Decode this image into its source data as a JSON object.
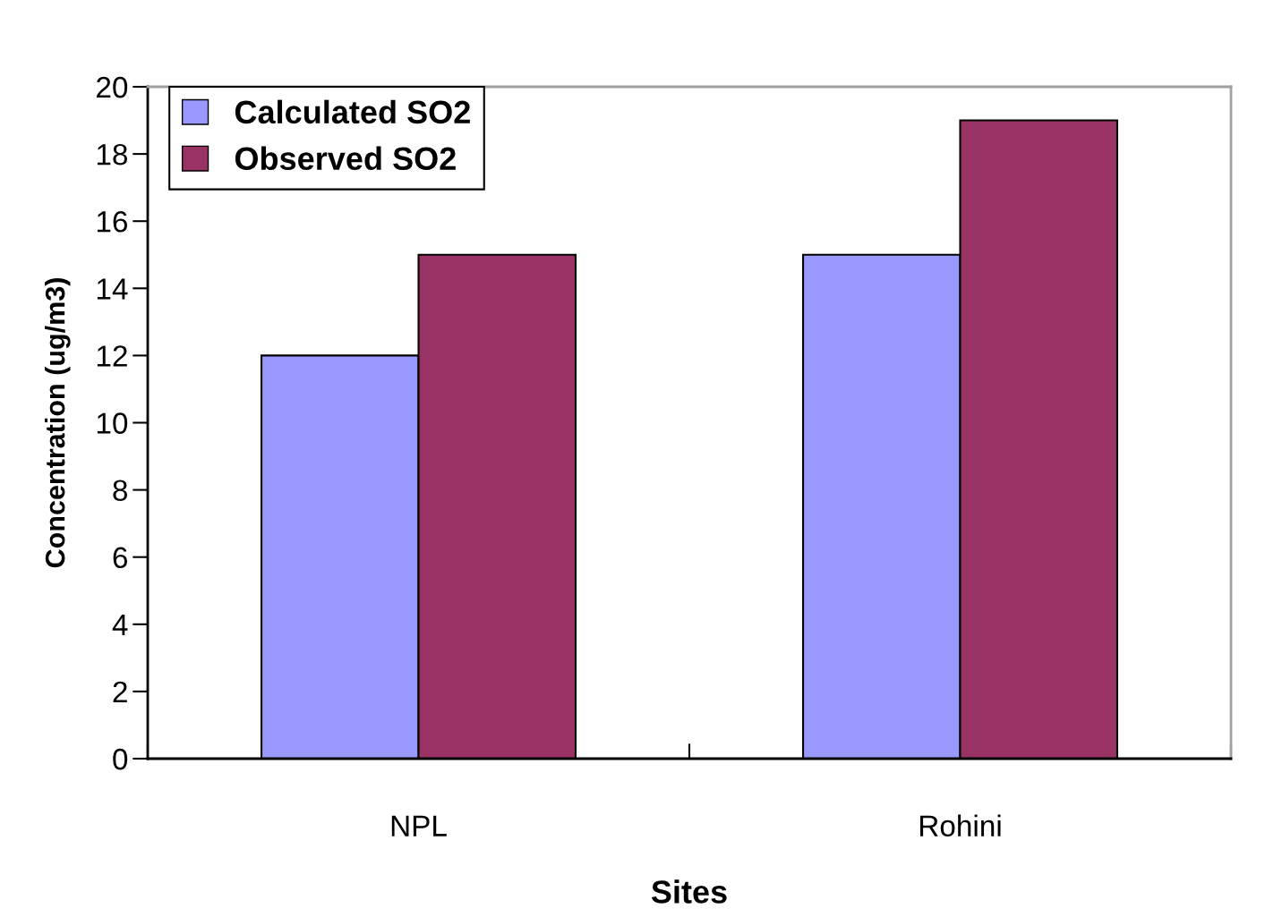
{
  "chart_data": {
    "type": "bar",
    "xlabel": "Sites",
    "ylabel": "Concentration (ug/m3)",
    "categories": [
      "NPL",
      "Rohini"
    ],
    "series": [
      {
        "name": "Calculated SO2",
        "color": "#9999ff",
        "values": [
          12,
          15
        ]
      },
      {
        "name": "Observed SO2",
        "color": "#993366",
        "values": [
          15,
          19
        ]
      }
    ],
    "ylim": [
      0,
      20
    ],
    "yticks": [
      0,
      2,
      4,
      6,
      8,
      10,
      12,
      14,
      16,
      18,
      20
    ],
    "grid": false,
    "legend": "top left"
  }
}
